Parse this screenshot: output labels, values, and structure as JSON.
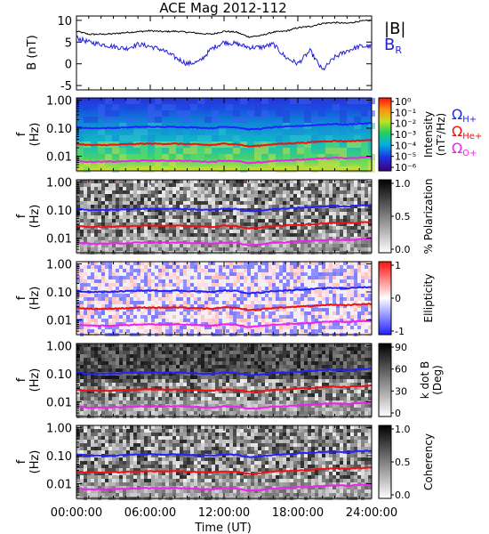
{
  "title": "ACE Mag 2012-112",
  "x_axis": {
    "label": "Time (UT)",
    "ticks": [
      "00:00:00",
      "06:00:00",
      "12:00:00",
      "18:00:00",
      "24:00:00"
    ],
    "tick_hours": [
      0,
      6,
      12,
      18,
      24
    ],
    "range_hours": [
      0,
      24
    ]
  },
  "freq_axis": {
    "label": "f (Hz)",
    "tick_labels": [
      "1.00",
      "0.10",
      "0.01"
    ],
    "tick_values": [
      1.0,
      0.1,
      0.01
    ],
    "range": [
      0.003,
      1.2
    ],
    "scale": "log"
  },
  "colors": {
    "bmag": "#000000",
    "br": "#1f1fdd",
    "h_plus": "#2222ff",
    "he_plus": "#ee1111",
    "o_plus": "#ee22ee"
  },
  "chart_data": [
    {
      "type": "line",
      "panel": "field",
      "ylabel": "B (nT)",
      "ylim": [
        -6,
        11
      ],
      "yticks": [
        10,
        5,
        0,
        -5
      ],
      "legend": [
        "|B|",
        "B_R"
      ],
      "x": [
        0,
        1,
        2,
        3,
        4,
        5,
        6,
        7,
        8,
        9,
        10,
        11,
        12,
        13,
        14,
        15,
        16,
        17,
        18,
        19,
        20,
        21,
        22,
        23,
        24
      ],
      "series": [
        {
          "name": "|B|",
          "color": "#000000",
          "values": [
            7.5,
            6.8,
            6.8,
            6.9,
            7.2,
            7.4,
            7.6,
            7.4,
            7.5,
            7.3,
            7.0,
            6.8,
            7.5,
            7.3,
            6.2,
            6.5,
            7.3,
            7.5,
            8.3,
            8.6,
            9.3,
            9.5,
            9.3,
            9.8,
            10.0
          ]
        },
        {
          "name": "B_R",
          "color": "#1f1fdd",
          "values": [
            6.0,
            5.0,
            4.5,
            4.0,
            3.5,
            4.5,
            4.0,
            3.2,
            1.5,
            0.0,
            0.5,
            3.5,
            5.0,
            4.6,
            3.8,
            3.8,
            4.5,
            1.5,
            0.0,
            3.0,
            -1.5,
            1.5,
            3.0,
            4.0,
            4.0
          ]
        }
      ]
    },
    {
      "type": "heatmap",
      "panel": "power",
      "ylabel": "f (Hz)",
      "colorbar": {
        "label": "Intensity (nT²/Hz)",
        "ticks": [
          "10⁰",
          "10⁻¹",
          "10⁻²",
          "10⁻³",
          "10⁻⁴",
          "10⁻⁵",
          "10⁻⁶"
        ]
      },
      "legend": [
        "Ω_H+",
        "Ω_He+",
        "Ω_O+"
      ]
    },
    {
      "type": "heatmap",
      "panel": "polarization",
      "ylabel": "f (Hz)",
      "colorbar": {
        "label": "% Polarization",
        "ticks": [
          "1.0",
          "0.5",
          "0.0"
        ]
      }
    },
    {
      "type": "heatmap",
      "panel": "ellipticity",
      "ylabel": "f (Hz)",
      "colorbar": {
        "label": "Ellipticity",
        "ticks": [
          "1",
          "0",
          "-1"
        ]
      }
    },
    {
      "type": "heatmap",
      "panel": "kdotb",
      "ylabel": "f (Hz)",
      "colorbar": {
        "label": "k dot B (Deg)",
        "ticks": [
          "90",
          "60",
          "30",
          "0"
        ]
      }
    },
    {
      "type": "heatmap",
      "panel": "coherency",
      "ylabel": "f (Hz)",
      "colorbar": {
        "label": "Coherency",
        "ticks": [
          "1.0",
          "0.5",
          "0.0"
        ]
      }
    },
    {
      "type": "line",
      "panel": "gyrofrequencies",
      "x": [
        0,
        1,
        2,
        3,
        4,
        5,
        6,
        7,
        8,
        9,
        10,
        11,
        12,
        13,
        14,
        15,
        16,
        17,
        18,
        19,
        20,
        21,
        22,
        23,
        24
      ],
      "series": [
        {
          "name": "Ω_H+",
          "color": "#2222ff",
          "values": [
            0.11,
            0.1,
            0.1,
            0.102,
            0.106,
            0.11,
            0.112,
            0.11,
            0.112,
            0.108,
            0.104,
            0.1,
            0.112,
            0.108,
            0.09,
            0.095,
            0.108,
            0.112,
            0.12,
            0.125,
            0.135,
            0.14,
            0.135,
            0.145,
            0.15
          ]
        },
        {
          "name": "Ω_He+",
          "color": "#ee1111",
          "values": [
            0.0275,
            0.025,
            0.025,
            0.0255,
            0.0265,
            0.0275,
            0.028,
            0.0275,
            0.028,
            0.027,
            0.026,
            0.025,
            0.028,
            0.027,
            0.0225,
            0.024,
            0.027,
            0.028,
            0.03,
            0.031,
            0.034,
            0.035,
            0.034,
            0.036,
            0.0375
          ]
        },
        {
          "name": "Ω_O+",
          "color": "#ee22ee",
          "values": [
            0.0069,
            0.0063,
            0.0063,
            0.0064,
            0.0066,
            0.0069,
            0.007,
            0.0069,
            0.007,
            0.0068,
            0.0065,
            0.0063,
            0.007,
            0.0068,
            0.0056,
            0.006,
            0.0068,
            0.007,
            0.0075,
            0.0078,
            0.0085,
            0.0088,
            0.0085,
            0.009,
            0.0094
          ]
        }
      ]
    }
  ],
  "legend_text": {
    "bmag": "|B|",
    "br_main": "B",
    "br_sub": "R",
    "omega": "Ω",
    "h_sub": "H+",
    "he_sub": "He+",
    "o_sub": "O+"
  }
}
